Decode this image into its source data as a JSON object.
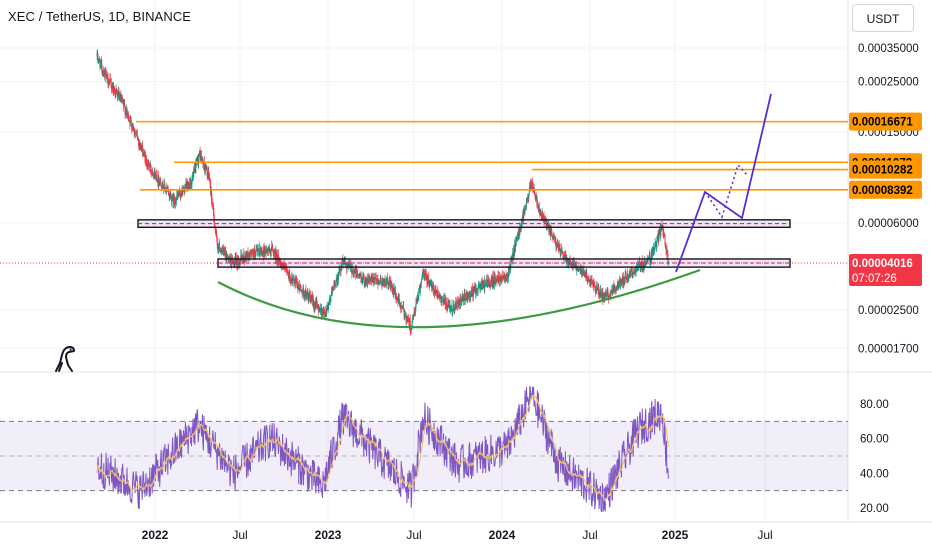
{
  "header": {
    "symbol": "XEC / TetherUS, 1D, BINANCE"
  },
  "currency_button": {
    "label": "USDT"
  },
  "colors": {
    "up": "#089981",
    "down": "#f23645",
    "level": "#ff9800",
    "projection": "#5b2bd6",
    "cup": "#3d9a42",
    "rsi_line": "#7e57c2",
    "rsi_ma": "#f5c26b",
    "rsi_band": "#7e57c2"
  },
  "chart_data": {
    "type": "candlestick",
    "price_axis": {
      "ticks": [
        "0.00035000",
        "0.00025000",
        "0.00015000",
        "0.00006000",
        "0.00002500",
        "0.00001700"
      ],
      "scale": "log"
    },
    "time_axis": {
      "ticks": [
        "2022",
        "Jul",
        "2023",
        "Jul",
        "2024",
        "Jul",
        "2025",
        "Jul"
      ]
    },
    "series_note": "daily candles",
    "price_path": [
      {
        "date": "2021-09-01",
        "price": 0.00032
      },
      {
        "date": "2021-09-20",
        "price": 0.00026
      },
      {
        "date": "2021-10-20",
        "price": 0.00021
      },
      {
        "date": "2021-11-20",
        "price": 0.00015
      },
      {
        "date": "2021-12-15",
        "price": 0.00011
      },
      {
        "date": "2022-01-10",
        "price": 9.2e-05
      },
      {
        "date": "2022-02-10",
        "price": 7.5e-05
      },
      {
        "date": "2022-03-20",
        "price": 9.2e-05
      },
      {
        "date": "2022-04-05",
        "price": 0.00012
      },
      {
        "date": "2022-04-25",
        "price": 9.5e-05
      },
      {
        "date": "2022-05-12",
        "price": 4.8e-05
      },
      {
        "date": "2022-06-15",
        "price": 4e-05
      },
      {
        "date": "2022-07-20",
        "price": 4.4e-05
      },
      {
        "date": "2022-09-05",
        "price": 4.6e-05
      },
      {
        "date": "2022-10-15",
        "price": 3.4e-05
      },
      {
        "date": "2022-12-25",
        "price": 2.4e-05
      },
      {
        "date": "2023-02-01",
        "price": 4.1e-05
      },
      {
        "date": "2023-03-15",
        "price": 3.4e-05
      },
      {
        "date": "2023-05-10",
        "price": 3.3e-05
      },
      {
        "date": "2023-06-25",
        "price": 2.1e-05
      },
      {
        "date": "2023-07-20",
        "price": 3.6e-05
      },
      {
        "date": "2023-09-15",
        "price": 2.5e-05
      },
      {
        "date": "2023-11-20",
        "price": 3.2e-05
      },
      {
        "date": "2024-01-15",
        "price": 3.6e-05
      },
      {
        "date": "2024-03-05",
        "price": 9e-05
      },
      {
        "date": "2024-03-25",
        "price": 6.5e-05
      },
      {
        "date": "2024-05-10",
        "price": 4.3e-05
      },
      {
        "date": "2024-06-15",
        "price": 3.8e-05
      },
      {
        "date": "2024-08-05",
        "price": 2.8e-05
      },
      {
        "date": "2024-09-20",
        "price": 3.5e-05
      },
      {
        "date": "2024-11-10",
        "price": 4.2e-05
      },
      {
        "date": "2024-12-05",
        "price": 5.8e-05
      },
      {
        "date": "2024-12-18",
        "price": 4.016e-05
      }
    ],
    "horizontal_levels": [
      {
        "price": "0.00016671"
      },
      {
        "price": "0.00011073"
      },
      {
        "price": "0.00010282"
      },
      {
        "price": "0.00008392"
      }
    ],
    "zones": [
      {
        "name": "upper-zone",
        "price_range": [
          5.75e-05,
          6.2e-05
        ]
      },
      {
        "name": "lower-zone",
        "price_range": [
          3.85e-05,
          4.18e-05
        ]
      }
    ],
    "current_price": {
      "price": "0.00004016",
      "countdown": "07:07:26"
    },
    "rsi": {
      "ticks": [
        "80.00",
        "60.00",
        "40.00",
        "20.00"
      ],
      "band": [
        30,
        70
      ],
      "mid": 50,
      "path": [
        {
          "date": "2021-09-01",
          "value": 44
        },
        {
          "date": "2021-12-01",
          "value": 30
        },
        {
          "date": "2022-04-01",
          "value": 68
        },
        {
          "date": "2022-06-15",
          "value": 40
        },
        {
          "date": "2022-09-01",
          "value": 60
        },
        {
          "date": "2022-12-20",
          "value": 32
        },
        {
          "date": "2023-02-01",
          "value": 72
        },
        {
          "date": "2023-06-25",
          "value": 30
        },
        {
          "date": "2023-07-20",
          "value": 72
        },
        {
          "date": "2023-10-01",
          "value": 45
        },
        {
          "date": "2024-01-15",
          "value": 55
        },
        {
          "date": "2024-03-05",
          "value": 86
        },
        {
          "date": "2024-05-01",
          "value": 45
        },
        {
          "date": "2024-08-05",
          "value": 25
        },
        {
          "date": "2024-10-15",
          "value": 65
        },
        {
          "date": "2024-12-05",
          "value": 76
        },
        {
          "date": "2024-12-18",
          "value": 40
        }
      ]
    }
  }
}
